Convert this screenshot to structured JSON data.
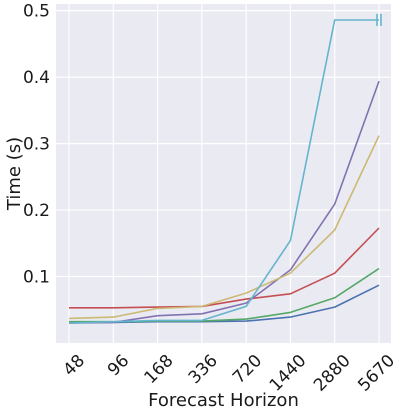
{
  "chart_data": {
    "type": "line",
    "title": "",
    "xlabel": "Forecast Horizon",
    "ylabel": "Time (s)",
    "categories": [
      "48",
      "96",
      "168",
      "336",
      "720",
      "1440",
      "2880",
      "5670"
    ],
    "ylim": [
      0.0,
      0.51
    ],
    "yticks": [
      "0.1",
      "0.2",
      "0.3",
      "0.4",
      "0.5"
    ],
    "grid": true,
    "legend": "none",
    "series": [
      {
        "color": "#4c72b0",
        "values": [
          0.031,
          0.031,
          0.032,
          0.032,
          0.033,
          0.039,
          0.054,
          0.087
        ]
      },
      {
        "color": "#55a868",
        "values": [
          0.032,
          0.032,
          0.033,
          0.033,
          0.036,
          0.046,
          0.068,
          0.112
        ]
      },
      {
        "color": "#c44e52",
        "values": [
          0.053,
          0.053,
          0.054,
          0.055,
          0.066,
          0.074,
          0.105,
          0.173
        ]
      },
      {
        "color": "#8172b2",
        "values": [
          0.03,
          0.031,
          0.041,
          0.044,
          0.06,
          0.11,
          0.209,
          0.394
        ]
      },
      {
        "color": "#ccb974",
        "values": [
          0.037,
          0.039,
          0.052,
          0.055,
          0.075,
          0.105,
          0.17,
          0.312
        ]
      },
      {
        "color": "#64b5cd",
        "values": [
          0.03,
          0.032,
          0.034,
          0.034,
          0.055,
          0.154,
          0.486,
          0.486
        ]
      }
    ],
    "annotations": [
      {
        "type": "truncation-marker",
        "color": "#64b5cd",
        "x": "5670",
        "y": 0.486
      }
    ]
  }
}
